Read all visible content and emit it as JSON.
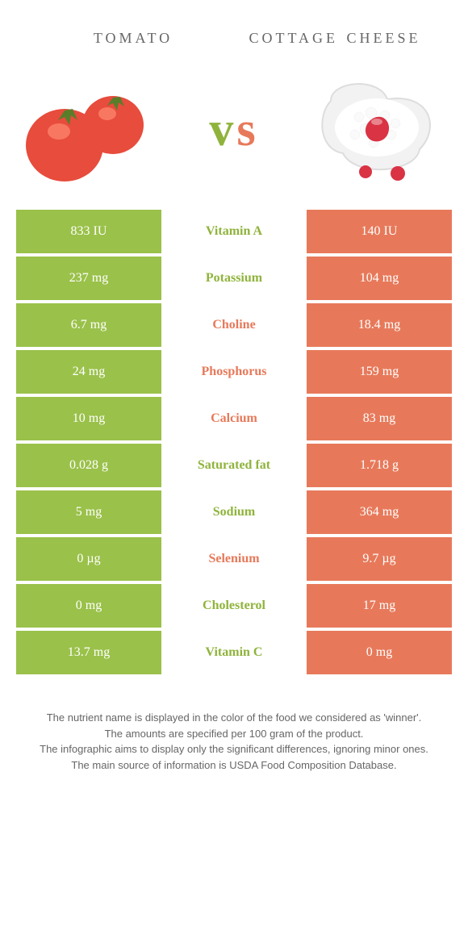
{
  "left_food": "tomato",
  "right_food": "cottage cheese",
  "vs_left": "v",
  "vs_right": "s",
  "colors": {
    "green": "#9ac14a",
    "orange": "#e7795a",
    "green_text": "#8fb33b",
    "orange_text": "#e7795a"
  },
  "rows": [
    {
      "left": "833 IU",
      "label": "Vitamin A",
      "winner": "green",
      "right": "140 IU"
    },
    {
      "left": "237 mg",
      "label": "Potassium",
      "winner": "green",
      "right": "104 mg"
    },
    {
      "left": "6.7 mg",
      "label": "Choline",
      "winner": "orange",
      "right": "18.4 mg"
    },
    {
      "left": "24 mg",
      "label": "Phosphorus",
      "winner": "orange",
      "right": "159 mg"
    },
    {
      "left": "10 mg",
      "label": "Calcium",
      "winner": "orange",
      "right": "83 mg"
    },
    {
      "left": "0.028 g",
      "label": "Saturated fat",
      "winner": "green",
      "right": "1.718 g"
    },
    {
      "left": "5 mg",
      "label": "Sodium",
      "winner": "green",
      "right": "364 mg"
    },
    {
      "left": "0 µg",
      "label": "Selenium",
      "winner": "orange",
      "right": "9.7 µg"
    },
    {
      "left": "0 mg",
      "label": "Cholesterol",
      "winner": "green",
      "right": "17 mg"
    },
    {
      "left": "13.7 mg",
      "label": "Vitamin C",
      "winner": "green",
      "right": "0 mg"
    }
  ],
  "footer": {
    "l1": "The nutrient name is displayed in the color of the food we considered as 'winner'.",
    "l2": "The amounts are specified per 100 gram of the product.",
    "l3": "The infographic aims to display only the significant differences, ignoring minor ones.",
    "l4": "The main source of information is USDA Food Composition Database."
  }
}
